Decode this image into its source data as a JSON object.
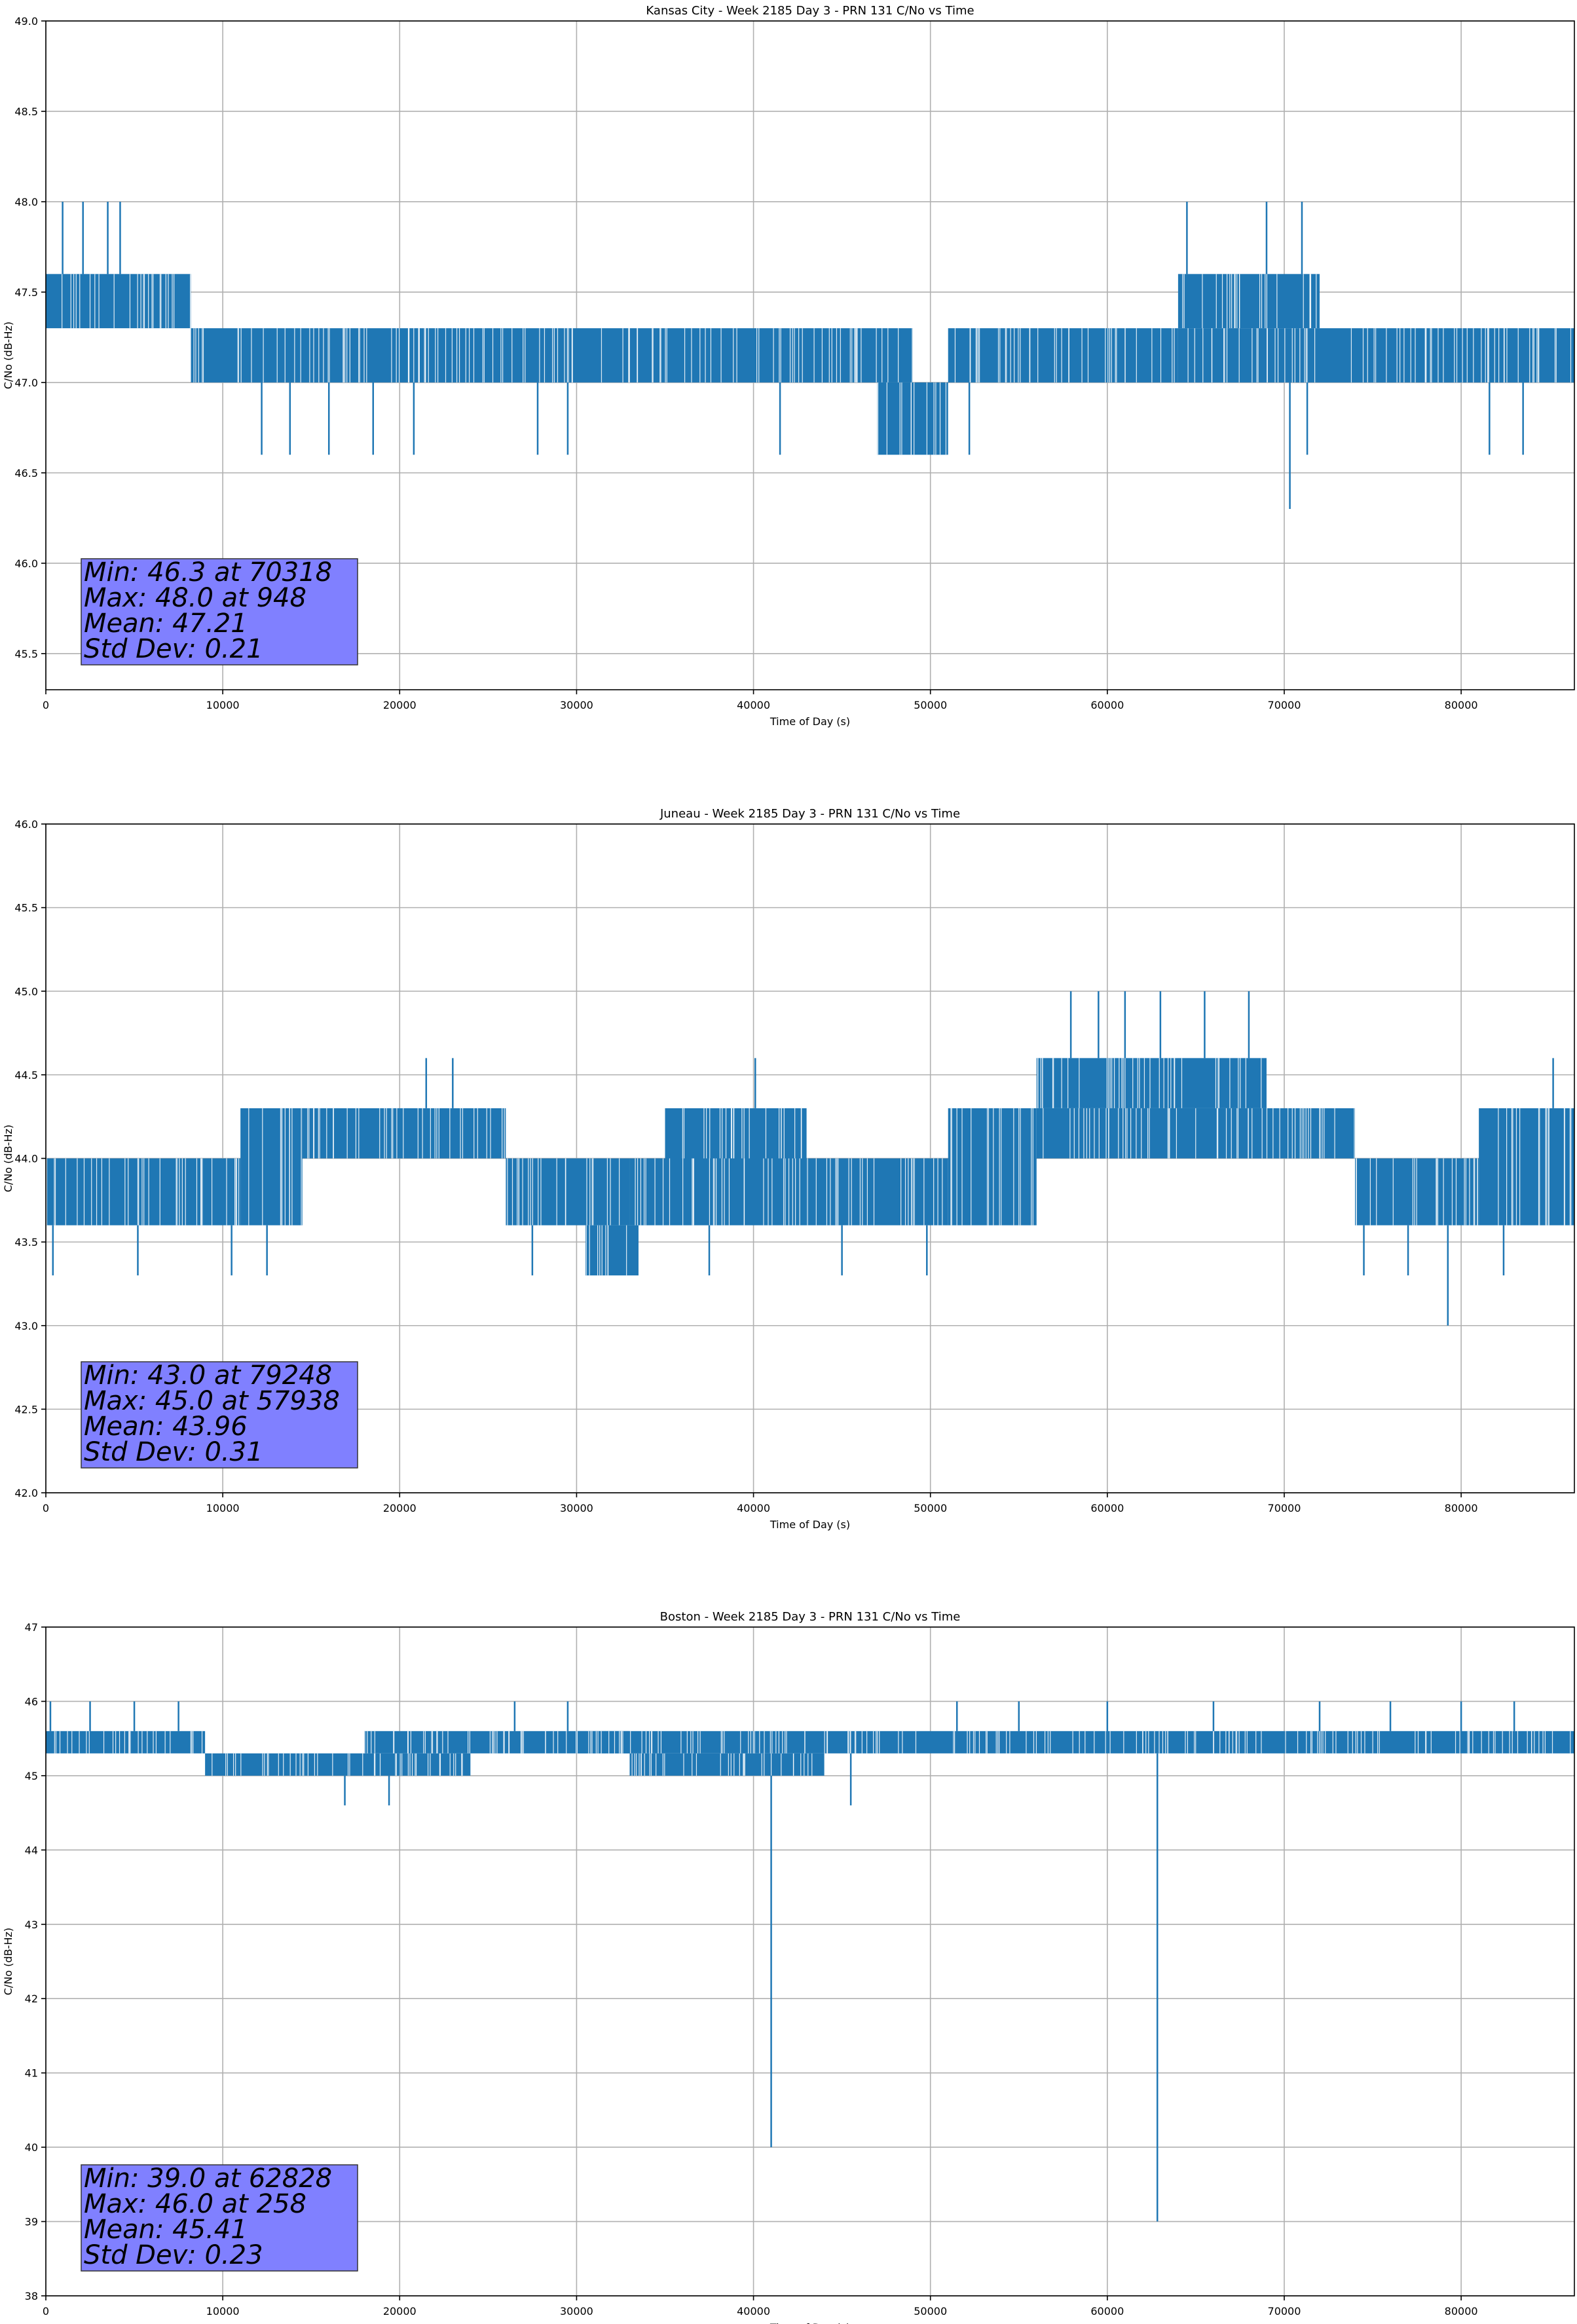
{
  "chart_data": [
    {
      "type": "line",
      "title": "Kansas City - Week 2185 Day 3 - PRN 131 C/No vs Time",
      "xlabel": "Time of Day (s)",
      "ylabel": "C/No (dB-Hz)",
      "xlim": [
        0,
        86400
      ],
      "ylim": [
        45.3,
        49.0
      ],
      "xticks": [
        0,
        10000,
        20000,
        30000,
        40000,
        50000,
        60000,
        70000,
        80000
      ],
      "yticks": [
        "45.5",
        "46.0",
        "46.5",
        "47.0",
        "47.5",
        "48.0",
        "48.5",
        "49.0"
      ],
      "grid": true,
      "line_color": "#1f77b4",
      "band_segments": [
        {
          "x": [
            0,
            8200
          ],
          "y": [
            47.3,
            47.6
          ]
        },
        {
          "x": [
            8200,
            39000
          ],
          "y": [
            47.0,
            47.3
          ]
        },
        {
          "x": [
            39000,
            49000
          ],
          "y": [
            47.0,
            47.3
          ]
        },
        {
          "x": [
            47000,
            51000
          ],
          "y": [
            46.6,
            47.0
          ]
        },
        {
          "x": [
            51000,
            64000
          ],
          "y": [
            47.0,
            47.3
          ]
        },
        {
          "x": [
            64000,
            72000
          ],
          "y": [
            47.3,
            47.6
          ]
        },
        {
          "x": [
            64000,
            86400
          ],
          "y": [
            47.0,
            47.3
          ]
        }
      ],
      "spikes": [
        {
          "x": 948,
          "y": 48.0
        },
        {
          "x": 2100,
          "y": 48.0
        },
        {
          "x": 3500,
          "y": 48.0
        },
        {
          "x": 4200,
          "y": 48.0
        },
        {
          "x": 64500,
          "y": 48.0
        },
        {
          "x": 69000,
          "y": 48.0
        },
        {
          "x": 71000,
          "y": 48.0
        },
        {
          "x": 70318,
          "y": 46.3
        },
        {
          "x": 12200,
          "y": 46.6
        },
        {
          "x": 13800,
          "y": 46.6
        },
        {
          "x": 16000,
          "y": 46.6
        },
        {
          "x": 18500,
          "y": 46.6
        },
        {
          "x": 20800,
          "y": 46.6
        },
        {
          "x": 27800,
          "y": 46.6
        },
        {
          "x": 29500,
          "y": 46.6
        },
        {
          "x": 41500,
          "y": 46.6
        },
        {
          "x": 52200,
          "y": 46.6
        },
        {
          "x": 71300,
          "y": 46.6
        },
        {
          "x": 81600,
          "y": 46.6
        },
        {
          "x": 83500,
          "y": 46.6
        }
      ],
      "stats": {
        "min": "Min: 46.3 at 70318",
        "max": "Max: 48.0 at 948",
        "mean": "Mean: 47.21",
        "std": "Std Dev: 0.21"
      }
    },
    {
      "type": "line",
      "title": "Juneau - Week 2185 Day 3 - PRN 131 C/No vs Time",
      "xlabel": "Time of Day (s)",
      "ylabel": "C/No (dB-Hz)",
      "xlim": [
        0,
        86400
      ],
      "ylim": [
        42.0,
        46.0
      ],
      "xticks": [
        0,
        10000,
        20000,
        30000,
        40000,
        50000,
        60000,
        70000,
        80000
      ],
      "yticks": [
        "42.0",
        "42.5",
        "43.0",
        "43.5",
        "44.0",
        "44.5",
        "45.0",
        "45.5",
        "46.0"
      ],
      "grid": true,
      "line_color": "#1f77b4",
      "band_segments": [
        {
          "x": [
            0,
            11000
          ],
          "y": [
            43.6,
            44.0
          ]
        },
        {
          "x": [
            11000,
            14500
          ],
          "y": [
            43.6,
            44.3
          ]
        },
        {
          "x": [
            14500,
            26000
          ],
          "y": [
            44.0,
            44.3
          ]
        },
        {
          "x": [
            26000,
            33000
          ],
          "y": [
            43.6,
            44.0
          ]
        },
        {
          "x": [
            30500,
            33500
          ],
          "y": [
            43.3,
            43.6
          ]
        },
        {
          "x": [
            33000,
            43000
          ],
          "y": [
            43.6,
            44.0
          ]
        },
        {
          "x": [
            35000,
            43000
          ],
          "y": [
            44.0,
            44.3
          ]
        },
        {
          "x": [
            43000,
            51000
          ],
          "y": [
            43.6,
            44.0
          ]
        },
        {
          "x": [
            51000,
            56000
          ],
          "y": [
            43.6,
            44.3
          ]
        },
        {
          "x": [
            56000,
            69000
          ],
          "y": [
            44.3,
            44.6
          ]
        },
        {
          "x": [
            56000,
            74000
          ],
          "y": [
            44.0,
            44.3
          ]
        },
        {
          "x": [
            74000,
            81000
          ],
          "y": [
            43.6,
            44.0
          ]
        },
        {
          "x": [
            81000,
            86400
          ],
          "y": [
            43.6,
            44.3
          ]
        }
      ],
      "spikes": [
        {
          "x": 21500,
          "y": 44.6
        },
        {
          "x": 23000,
          "y": 44.6
        },
        {
          "x": 40100,
          "y": 44.6
        },
        {
          "x": 57938,
          "y": 45.0
        },
        {
          "x": 59500,
          "y": 45.0
        },
        {
          "x": 61000,
          "y": 45.0
        },
        {
          "x": 63000,
          "y": 45.0
        },
        {
          "x": 65500,
          "y": 45.0
        },
        {
          "x": 68000,
          "y": 45.0
        },
        {
          "x": 85200,
          "y": 44.6
        },
        {
          "x": 79248,
          "y": 43.0
        },
        {
          "x": 400,
          "y": 43.3
        },
        {
          "x": 5200,
          "y": 43.3
        },
        {
          "x": 10500,
          "y": 43.3
        },
        {
          "x": 12500,
          "y": 43.3
        },
        {
          "x": 27500,
          "y": 43.3
        },
        {
          "x": 37500,
          "y": 43.3
        },
        {
          "x": 45000,
          "y": 43.3
        },
        {
          "x": 49800,
          "y": 43.3
        },
        {
          "x": 74500,
          "y": 43.3
        },
        {
          "x": 77000,
          "y": 43.3
        },
        {
          "x": 82400,
          "y": 43.3
        }
      ],
      "stats": {
        "min": "Min: 43.0 at 79248",
        "max": "Max: 45.0 at 57938",
        "mean": "Mean: 43.96",
        "std": "Std Dev: 0.31"
      }
    },
    {
      "type": "line",
      "title": "Boston - Week 2185 Day 3 - PRN 131 C/No vs Time",
      "xlabel": "Time of Day (s)",
      "ylabel": "C/No (dB-Hz)",
      "xlim": [
        0,
        86400
      ],
      "ylim": [
        38,
        47
      ],
      "xticks": [
        0,
        10000,
        20000,
        30000,
        40000,
        50000,
        60000,
        70000,
        80000
      ],
      "yticks": [
        "38",
        "39",
        "40",
        "41",
        "42",
        "43",
        "44",
        "45",
        "46",
        "47"
      ],
      "grid": true,
      "line_color": "#1f77b4",
      "band_segments": [
        {
          "x": [
            0,
            9000
          ],
          "y": [
            45.3,
            45.6
          ]
        },
        {
          "x": [
            9000,
            24000
          ],
          "y": [
            45.0,
            45.3
          ]
        },
        {
          "x": [
            18000,
            33000
          ],
          "y": [
            45.3,
            45.6
          ]
        },
        {
          "x": [
            33000,
            44000
          ],
          "y": [
            45.0,
            45.3
          ]
        },
        {
          "x": [
            30000,
            86400
          ],
          "y": [
            45.3,
            45.6
          ]
        }
      ],
      "spikes": [
        {
          "x": 258,
          "y": 46.0
        },
        {
          "x": 2500,
          "y": 46.0
        },
        {
          "x": 5000,
          "y": 46.0
        },
        {
          "x": 7500,
          "y": 46.0
        },
        {
          "x": 26500,
          "y": 46.0
        },
        {
          "x": 29500,
          "y": 46.0
        },
        {
          "x": 51500,
          "y": 46.0
        },
        {
          "x": 55000,
          "y": 46.0
        },
        {
          "x": 60000,
          "y": 46.0
        },
        {
          "x": 66000,
          "y": 46.0
        },
        {
          "x": 72000,
          "y": 46.0
        },
        {
          "x": 76000,
          "y": 46.0
        },
        {
          "x": 80000,
          "y": 46.0
        },
        {
          "x": 83000,
          "y": 46.0
        },
        {
          "x": 16900,
          "y": 44.6
        },
        {
          "x": 19400,
          "y": 44.6
        },
        {
          "x": 45500,
          "y": 44.6
        },
        {
          "x": 41000,
          "y": 40.0
        },
        {
          "x": 62828,
          "y": 39.0
        }
      ],
      "stats": {
        "min": "Min: 39.0 at 62828",
        "max": "Max: 46.0 at 258",
        "mean": "Mean: 45.41",
        "std": "Std Dev: 0.23"
      }
    }
  ]
}
